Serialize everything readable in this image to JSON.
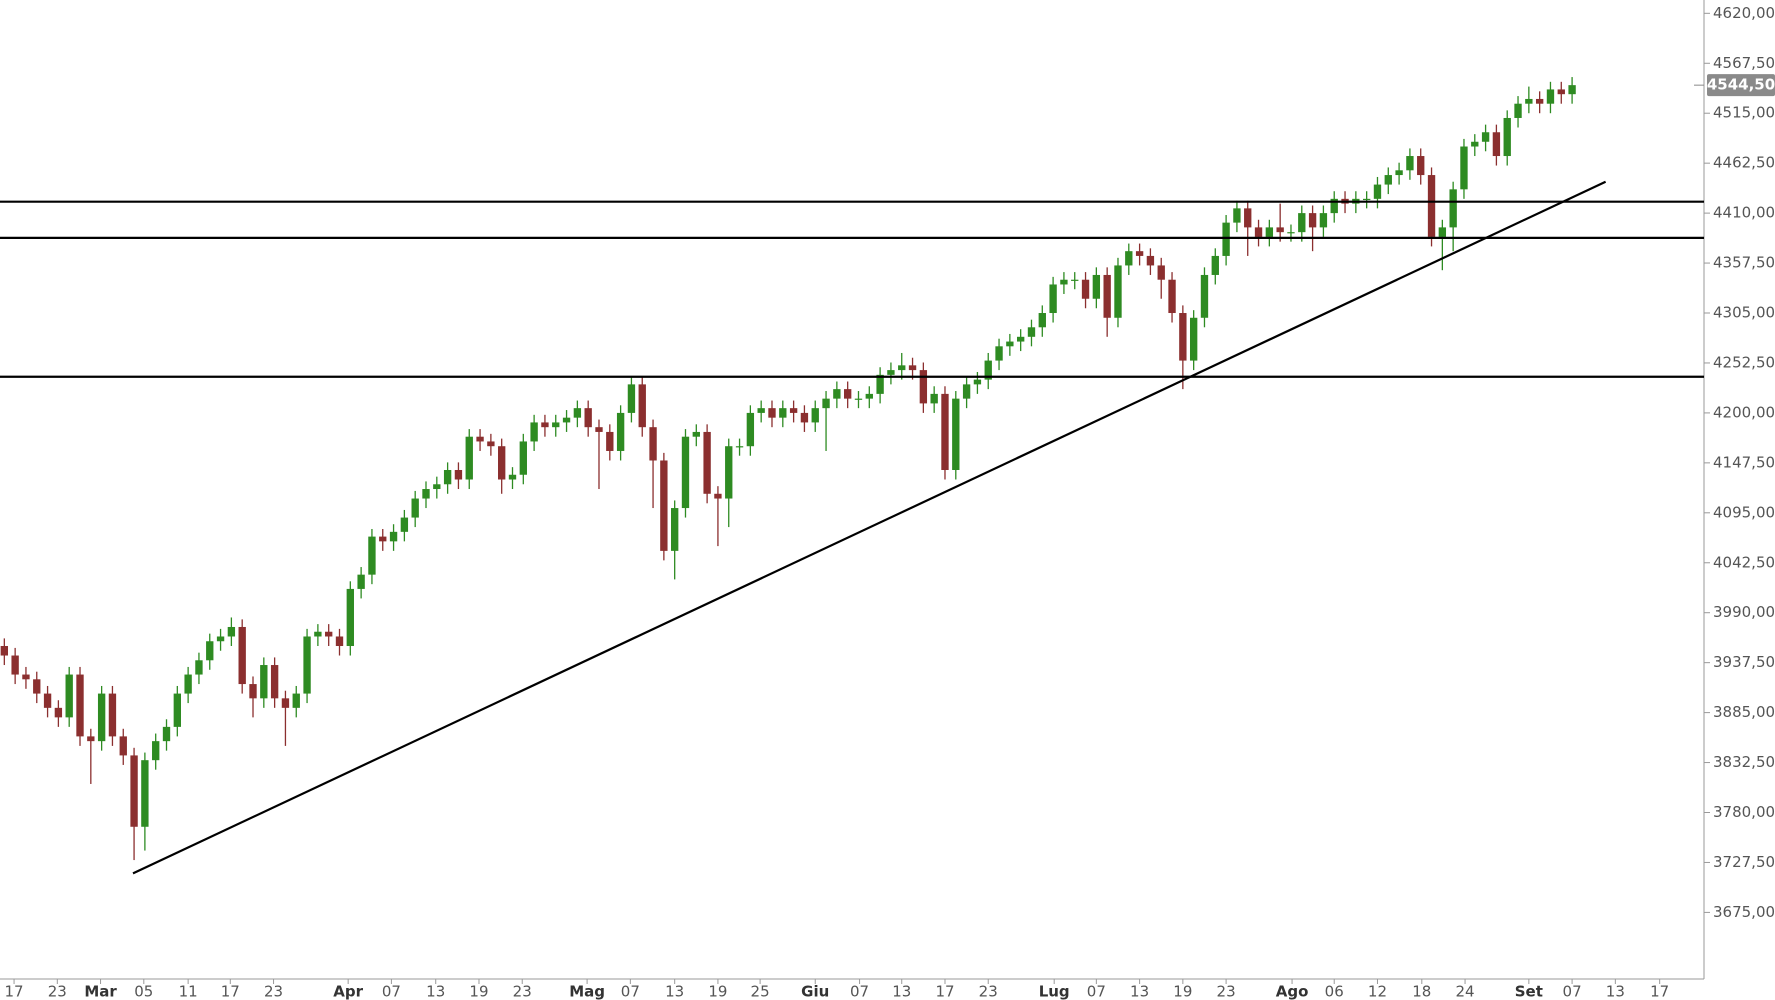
{
  "chart_data": {
    "type": "candlestick",
    "up_color": "#2e8b22",
    "down_color": "#8b2f2f",
    "line_color": "#000000",
    "open": [
      3955,
      3945,
      3925,
      3920,
      3905,
      3890,
      3880,
      3925,
      3860,
      3855,
      3905,
      3860,
      3840,
      3765,
      3835,
      3855,
      3870,
      3905,
      3925,
      3940,
      3960,
      3965,
      3975,
      3915,
      3900,
      3935,
      3900,
      3890,
      3905,
      3965,
      3970,
      3965,
      3955,
      4015,
      4030,
      4070,
      4065,
      4075,
      4090,
      4110,
      4120,
      4125,
      4140,
      4130,
      4175,
      4170,
      4165,
      4130,
      4135,
      4170,
      4190,
      4185,
      4190,
      4195,
      4205,
      4185,
      4180,
      4160,
      4200,
      4230,
      4185,
      4150,
      4055,
      4100,
      4175,
      4180,
      4115,
      4110,
      4165,
      4165,
      4200,
      4205,
      4195,
      4205,
      4200,
      4190,
      4205,
      4215,
      4225,
      4215,
      4215,
      4220,
      4240,
      4245,
      4250,
      4245,
      4210,
      4220,
      4140,
      4215,
      4230,
      4235,
      4255,
      4270,
      4275,
      4280,
      4290,
      4305,
      4335,
      4340,
      4340,
      4320,
      4345,
      4300,
      4355,
      4370,
      4365,
      4355,
      4340,
      4305,
      4255,
      4300,
      4345,
      4365,
      4400,
      4415,
      4395,
      4385,
      4395,
      4390,
      4390,
      4410,
      4395,
      4410,
      4425,
      4420,
      4425,
      4425,
      4440,
      4450,
      4455,
      4470,
      4450,
      4385,
      4395,
      4435,
      4480,
      4485,
      4495,
      4470,
      4510,
      4525,
      4530,
      4525,
      4540,
      4535
    ],
    "high": [
      3963,
      3953,
      3933,
      3928,
      3913,
      3898,
      3933,
      3933,
      3868,
      3913,
      3913,
      3868,
      3848,
      3843,
      3863,
      3878,
      3913,
      3933,
      3948,
      3968,
      3973,
      3985,
      3983,
      3923,
      3943,
      3943,
      3908,
      3913,
      3973,
      3978,
      3978,
      3973,
      4023,
      4038,
      4078,
      4078,
      4083,
      4098,
      4118,
      4128,
      4133,
      4148,
      4148,
      4183,
      4183,
      4178,
      4173,
      4143,
      4178,
      4198,
      4198,
      4198,
      4203,
      4213,
      4213,
      4193,
      4188,
      4208,
      4238,
      4238,
      4193,
      4158,
      4108,
      4183,
      4188,
      4188,
      4123,
      4173,
      4173,
      4208,
      4213,
      4213,
      4213,
      4213,
      4208,
      4213,
      4223,
      4233,
      4233,
      4223,
      4228,
      4248,
      4253,
      4263,
      4258,
      4253,
      4228,
      4228,
      4223,
      4238,
      4243,
      4263,
      4278,
      4283,
      4288,
      4298,
      4313,
      4343,
      4348,
      4348,
      4348,
      4353,
      4353,
      4363,
      4378,
      4378,
      4373,
      4363,
      4348,
      4313,
      4308,
      4353,
      4373,
      4408,
      4423,
      4423,
      4403,
      4403,
      4420,
      4398,
      4418,
      4418,
      4418,
      4433,
      4433,
      4433,
      4433,
      4448,
      4458,
      4463,
      4478,
      4478,
      4458,
      4403,
      4443,
      4488,
      4493,
      4503,
      4503,
      4518,
      4533,
      4543,
      4538,
      4548,
      4548,
      4553
    ],
    "low": [
      3935,
      3915,
      3910,
      3895,
      3880,
      3870,
      3870,
      3850,
      3810,
      3845,
      3850,
      3830,
      3730,
      3740,
      3825,
      3845,
      3860,
      3895,
      3915,
      3930,
      3950,
      3955,
      3905,
      3880,
      3890,
      3890,
      3850,
      3880,
      3895,
      3955,
      3955,
      3945,
      3945,
      4005,
      4020,
      4055,
      4055,
      4065,
      4080,
      4100,
      4110,
      4115,
      4120,
      4120,
      4160,
      4155,
      4115,
      4120,
      4125,
      4160,
      4175,
      4175,
      4180,
      4185,
      4175,
      4120,
      4150,
      4150,
      4190,
      4175,
      4100,
      4045,
      4025,
      4090,
      4165,
      4105,
      4060,
      4080,
      4155,
      4155,
      4190,
      4185,
      4185,
      4190,
      4180,
      4180,
      4160,
      4205,
      4205,
      4205,
      4205,
      4210,
      4230,
      4235,
      4235,
      4200,
      4200,
      4130,
      4130,
      4205,
      4220,
      4225,
      4245,
      4260,
      4265,
      4270,
      4280,
      4295,
      4325,
      4330,
      4310,
      4310,
      4280,
      4290,
      4345,
      4355,
      4345,
      4320,
      4295,
      4225,
      4245,
      4290,
      4335,
      4355,
      4390,
      4365,
      4375,
      4375,
      4380,
      4380,
      4380,
      4370,
      4385,
      4400,
      4410,
      4410,
      4415,
      4415,
      4430,
      4440,
      4445,
      4440,
      4375,
      4350,
      4370,
      4425,
      4470,
      4475,
      4460,
      4460,
      4500,
      4515,
      4515,
      4515,
      4525,
      4525
    ],
    "close": [
      3945,
      3925,
      3920,
      3905,
      3890,
      3880,
      3925,
      3860,
      3855,
      3905,
      3860,
      3840,
      3765,
      3835,
      3855,
      3870,
      3905,
      3925,
      3940,
      3960,
      3965,
      3975,
      3915,
      3900,
      3935,
      3900,
      3890,
      3905,
      3965,
      3970,
      3965,
      3955,
      4015,
      4030,
      4070,
      4065,
      4075,
      4090,
      4110,
      4120,
      4125,
      4140,
      4130,
      4175,
      4170,
      4165,
      4130,
      4135,
      4170,
      4190,
      4185,
      4190,
      4195,
      4205,
      4185,
      4180,
      4160,
      4200,
      4230,
      4185,
      4150,
      4055,
      4100,
      4175,
      4180,
      4115,
      4110,
      4165,
      4165,
      4200,
      4205,
      4195,
      4205,
      4200,
      4190,
      4205,
      4215,
      4225,
      4215,
      4215,
      4220,
      4240,
      4245,
      4250,
      4245,
      4210,
      4220,
      4140,
      4215,
      4230,
      4235,
      4255,
      4270,
      4275,
      4280,
      4290,
      4305,
      4335,
      4340,
      4340,
      4320,
      4345,
      4300,
      4355,
      4370,
      4365,
      4355,
      4340,
      4305,
      4255,
      4300,
      4345,
      4365,
      4400,
      4415,
      4395,
      4385,
      4395,
      4390,
      4390,
      4410,
      4395,
      4410,
      4425,
      4420,
      4425,
      4425,
      4440,
      4450,
      4455,
      4470,
      4450,
      4385,
      4395,
      4435,
      4480,
      4485,
      4495,
      4470,
      4510,
      4525,
      4530,
      4525,
      4540,
      4535,
      4544.5
    ],
    "price_marker": {
      "value": 4544.5,
      "label": "4544,50"
    },
    "levels": [
      4422,
      4384,
      4238
    ],
    "trendline": {
      "x": [
        11.9,
        148.1
      ],
      "y": [
        3716,
        4443
      ]
    },
    "xlim": [
      -0.4,
      157.2
    ],
    "ylim": [
      3605,
      4634
    ],
    "xticks": [
      {
        "value": 0.9,
        "label": "17"
      },
      {
        "value": 4.9,
        "label": "23"
      },
      {
        "value": 8.9,
        "label": "Mar"
      },
      {
        "value": 12.9,
        "label": "05"
      },
      {
        "value": 17.0,
        "label": "11"
      },
      {
        "value": 20.9,
        "label": "17"
      },
      {
        "value": 24.9,
        "label": "23"
      },
      {
        "value": 31.8,
        "label": "Apr"
      },
      {
        "value": 35.8,
        "label": "07"
      },
      {
        "value": 39.9,
        "label": "13"
      },
      {
        "value": 43.9,
        "label": "19"
      },
      {
        "value": 47.9,
        "label": "23"
      },
      {
        "value": 53.9,
        "label": "Mag"
      },
      {
        "value": 57.9,
        "label": "07"
      },
      {
        "value": 62.0,
        "label": "13"
      },
      {
        "value": 66.0,
        "label": "19"
      },
      {
        "value": 69.9,
        "label": "25"
      },
      {
        "value": 75.0,
        "label": "Giu"
      },
      {
        "value": 79.1,
        "label": "07"
      },
      {
        "value": 83.0,
        "label": "13"
      },
      {
        "value": 87.0,
        "label": "17"
      },
      {
        "value": 91.0,
        "label": "23"
      },
      {
        "value": 97.1,
        "label": "Lug"
      },
      {
        "value": 101.0,
        "label": "07"
      },
      {
        "value": 105.0,
        "label": "13"
      },
      {
        "value": 109.0,
        "label": "19"
      },
      {
        "value": 113.0,
        "label": "23"
      },
      {
        "value": 119.1,
        "label": "Ago"
      },
      {
        "value": 123.0,
        "label": "06"
      },
      {
        "value": 127.0,
        "label": "12"
      },
      {
        "value": 131.1,
        "label": "18"
      },
      {
        "value": 135.1,
        "label": "24"
      },
      {
        "value": 141.0,
        "label": "Set"
      },
      {
        "value": 145.0,
        "label": "07"
      },
      {
        "value": 149.0,
        "label": "13"
      },
      {
        "value": 153.1,
        "label": "17"
      }
    ],
    "yticks": [
      {
        "value": 3675,
        "label": "3675,00"
      },
      {
        "value": 3727.5,
        "label": "3727,50"
      },
      {
        "value": 3780,
        "label": "3780,00"
      },
      {
        "value": 3832.5,
        "label": "3832,50"
      },
      {
        "value": 3885,
        "label": "3885,00"
      },
      {
        "value": 3937.5,
        "label": "3937,50"
      },
      {
        "value": 3990,
        "label": "3990,00"
      },
      {
        "value": 4042.5,
        "label": "4042,50"
      },
      {
        "value": 4095,
        "label": "4095,00"
      },
      {
        "value": 4147.5,
        "label": "4147,50"
      },
      {
        "value": 4200,
        "label": "4200,00"
      },
      {
        "value": 4252.5,
        "label": "4252,50"
      },
      {
        "value": 4305,
        "label": "4305,00"
      },
      {
        "value": 4357.5,
        "label": "4357,50"
      },
      {
        "value": 4410,
        "label": "4410,00"
      },
      {
        "value": 4462.5,
        "label": "4462,50"
      },
      {
        "value": 4515,
        "label": "4515,00"
      },
      {
        "value": 4567.5,
        "label": "4567,50"
      },
      {
        "value": 4620,
        "label": "4620,00"
      }
    ]
  }
}
